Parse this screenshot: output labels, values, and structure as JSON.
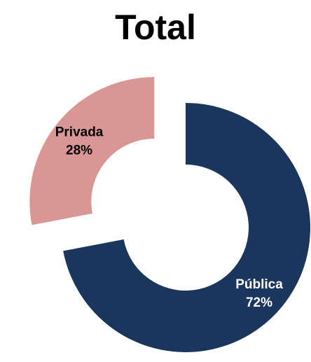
{
  "chart_data": {
    "type": "pie",
    "title": "Total",
    "categories": [
      "Pública",
      "Privada"
    ],
    "values": [
      72,
      28
    ],
    "labels": [
      "72%",
      "28%"
    ],
    "colors": [
      "#1b365d",
      "#d99694"
    ],
    "label_colors": [
      "#ffffff",
      "#000000"
    ],
    "donut": true,
    "exploded": true,
    "legend": "none"
  }
}
